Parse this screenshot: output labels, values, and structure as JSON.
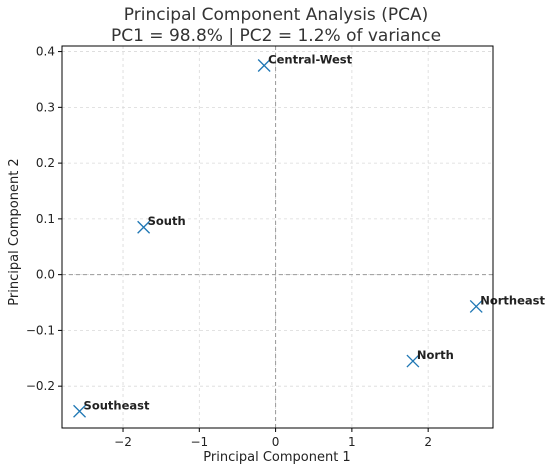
{
  "chart_data": {
    "type": "scatter",
    "title": "Principal Component Analysis (PCA)",
    "subtitle": "PC1 = 98.8% | PC2 = 1.2% of variance",
    "xlabel": "Principal Component 1",
    "ylabel": "Principal Component 2",
    "xlim": [
      -2.8,
      2.85
    ],
    "ylim": [
      -0.275,
      0.41
    ],
    "xticks": [
      -2,
      -1,
      0,
      1,
      2
    ],
    "xtick_labels": [
      "−2",
      "−1",
      "0",
      "1",
      "2"
    ],
    "yticks": [
      -0.2,
      -0.1,
      0.0,
      0.1,
      0.2,
      0.3,
      0.4
    ],
    "ytick_labels": [
      "−0.2",
      "−0.1",
      "0.0",
      "0.1",
      "0.2",
      "0.3",
      "0.4"
    ],
    "grid": true,
    "reference_lines": {
      "x": 0,
      "y": 0
    },
    "marker": "x",
    "marker_color": "#1f77b4",
    "points": [
      {
        "label": "Central-West",
        "x": -0.15,
        "y": 0.375
      },
      {
        "label": "South",
        "x": -1.73,
        "y": 0.085
      },
      {
        "label": "Northeast",
        "x": 2.63,
        "y": -0.057
      },
      {
        "label": "North",
        "x": 1.8,
        "y": -0.155
      },
      {
        "label": "Southeast",
        "x": -2.57,
        "y": -0.245
      }
    ]
  }
}
